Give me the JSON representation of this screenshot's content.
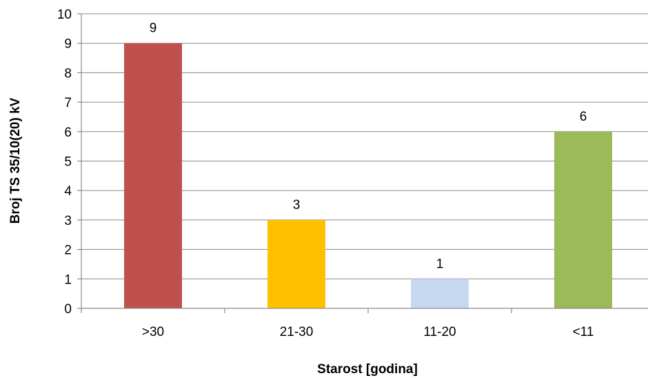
{
  "chart_data": {
    "type": "bar",
    "title": "",
    "xlabel": "Starost [godina]",
    "ylabel": "Broj TS 35/10(20) kV",
    "categories": [
      ">30",
      "21-30",
      "11-20",
      "<11"
    ],
    "values": [
      9,
      3,
      1,
      6
    ],
    "data_labels": [
      "9",
      "3",
      "1",
      "6"
    ],
    "colors": [
      "#c0504d",
      "#ffc000",
      "#c6d9f1",
      "#9bbb59"
    ],
    "ylim": [
      0,
      10
    ],
    "yticks": [
      "0",
      "1",
      "2",
      "3",
      "4",
      "5",
      "6",
      "7",
      "8",
      "9",
      "10"
    ],
    "grid": true,
    "legend": "none"
  }
}
